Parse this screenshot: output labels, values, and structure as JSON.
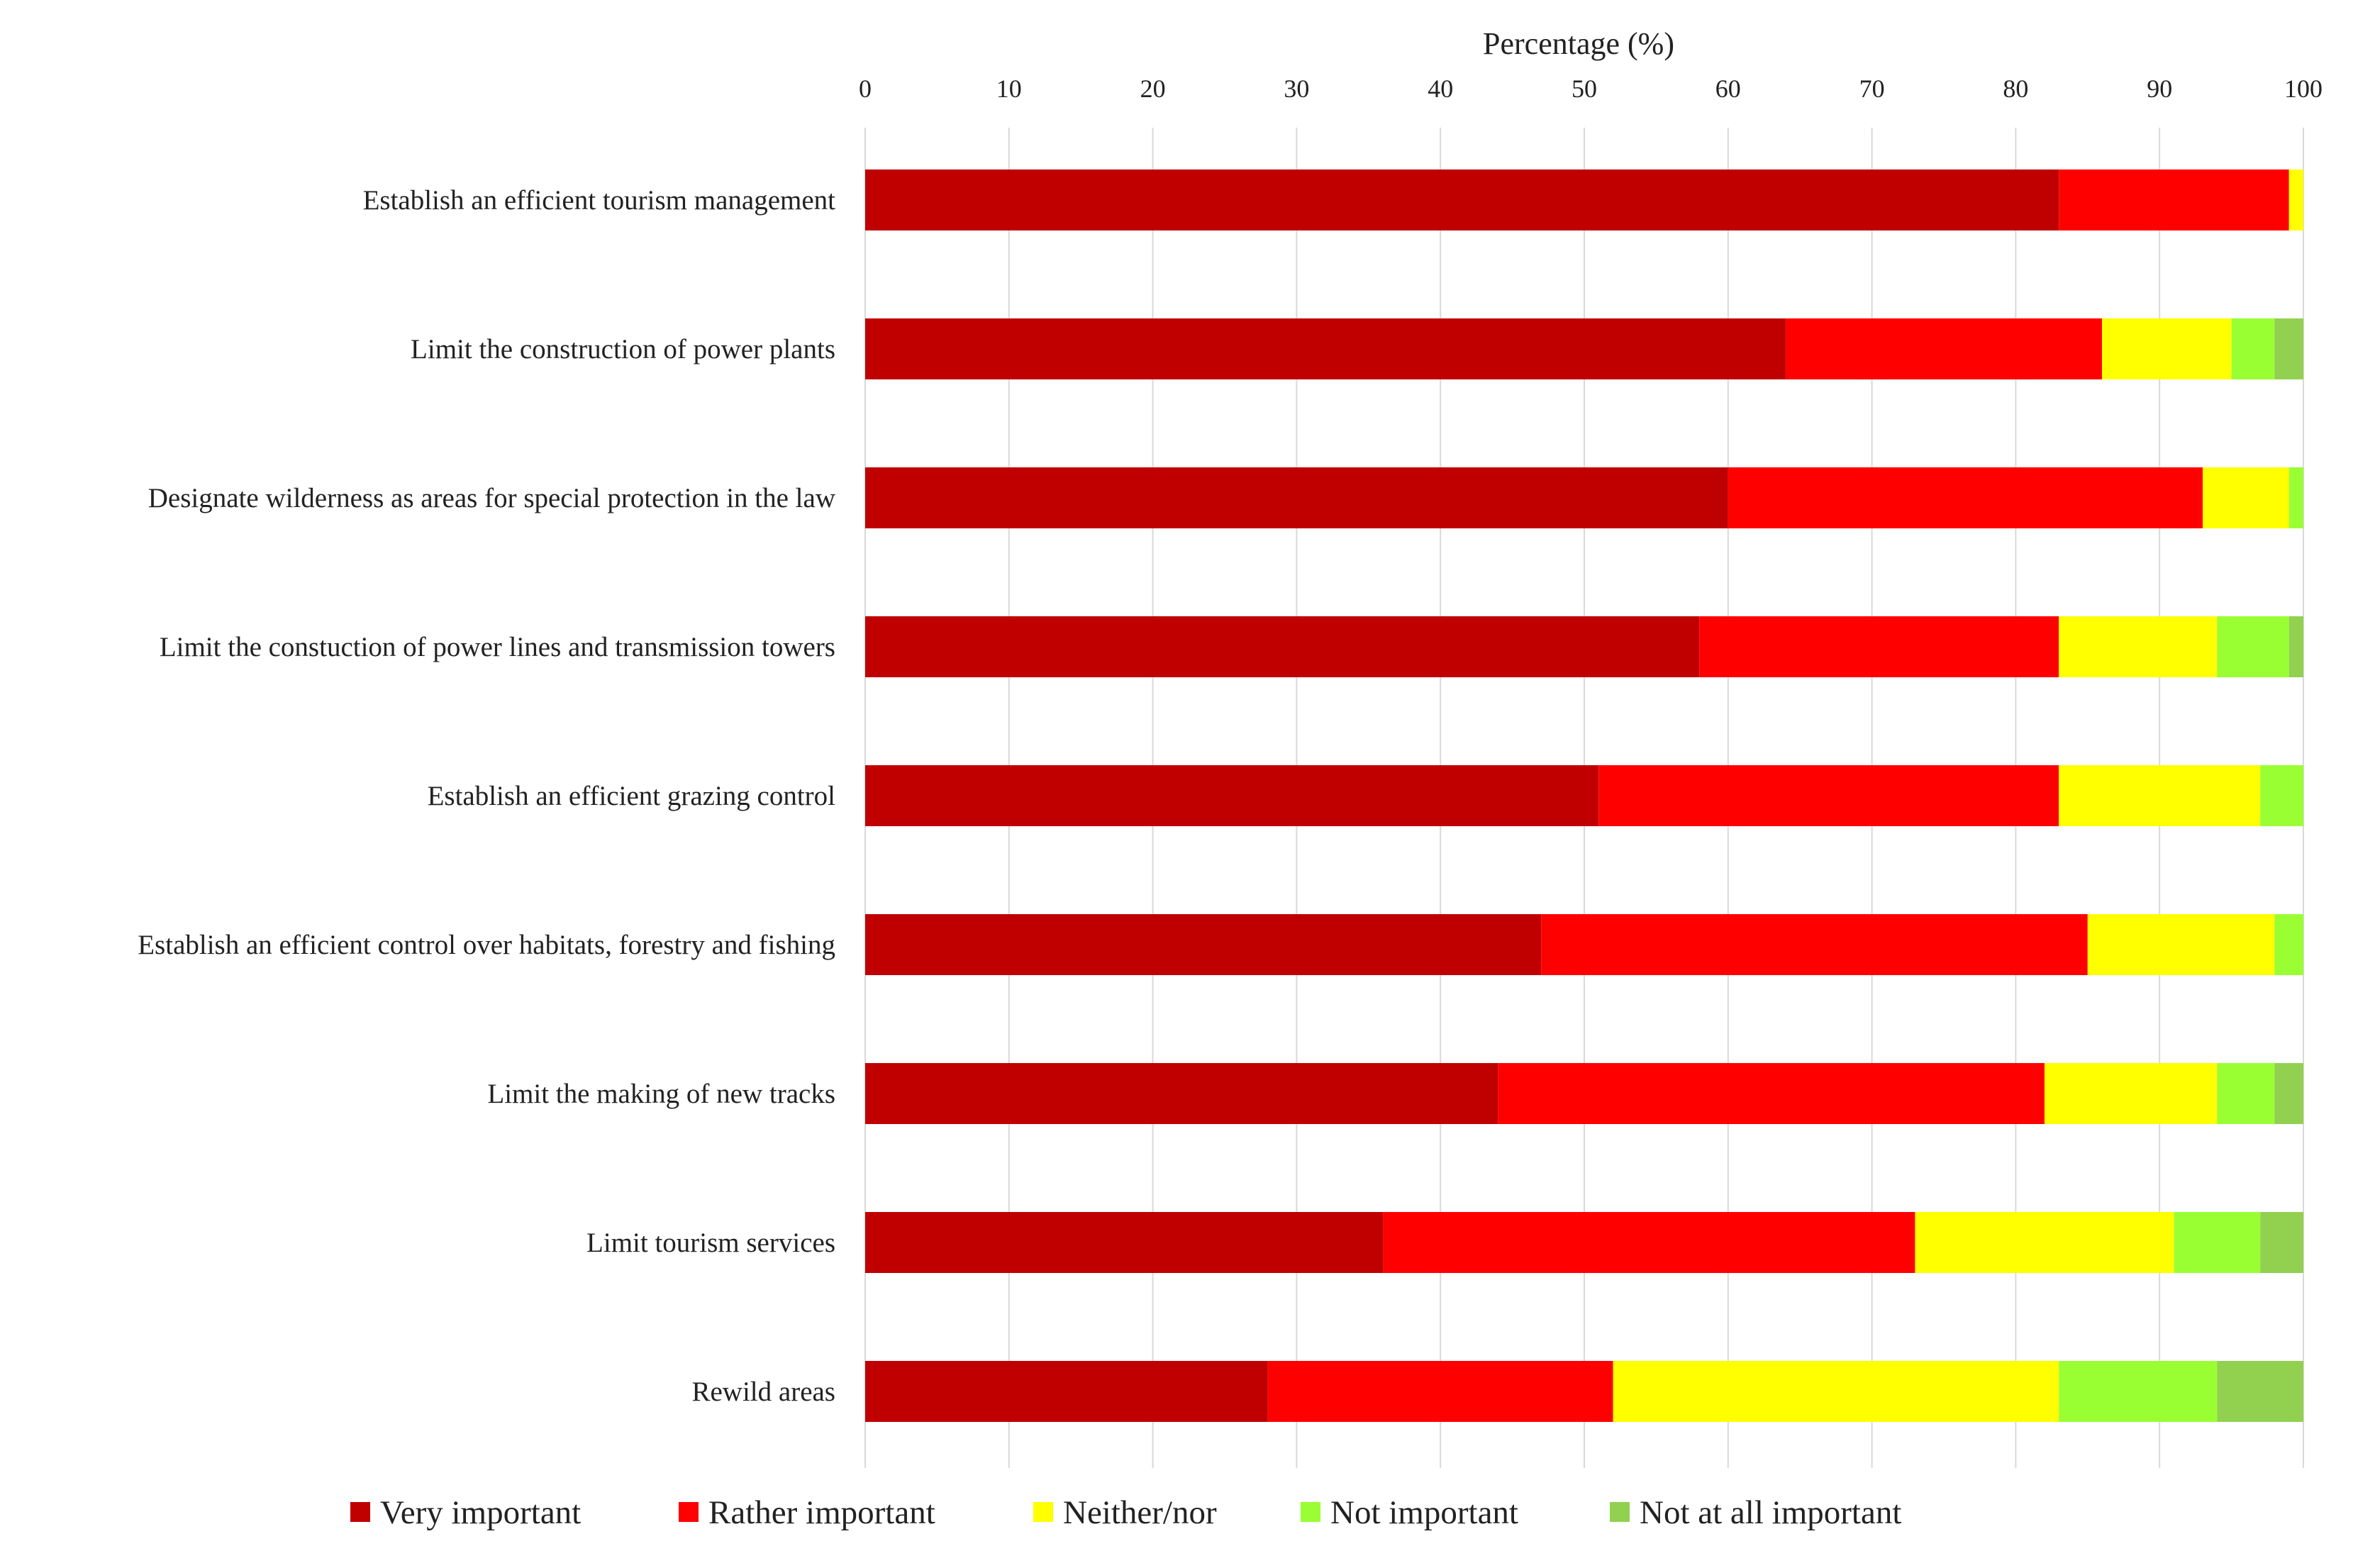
{
  "chart_data": {
    "type": "bar",
    "orientation": "horizontal",
    "stacked": true,
    "title": "",
    "xlabel": "Percentage (%)",
    "ylabel": "",
    "xlim": [
      0,
      100
    ],
    "x_ticks": [
      0,
      10,
      20,
      30,
      40,
      50,
      60,
      70,
      80,
      90,
      100
    ],
    "grid": true,
    "legend_position": "bottom",
    "categories": [
      "Establish an efficient tourism management",
      "Limit the construction of power plants",
      "Designate wilderness as areas for special protection in the  law",
      "Limit the constuction of power lines and transmission towers",
      "Establish an efficient grazing control",
      "Establish an efficient control over habitats, forestry and fishing",
      "Limit the making of new tracks",
      "Limit tourism services",
      "Rewild areas"
    ],
    "series": [
      {
        "name": "Very important",
        "color": "#c00000",
        "values": [
          83,
          64,
          60,
          58,
          51,
          47,
          44,
          36,
          28
        ]
      },
      {
        "name": "Rather important",
        "color": "#ff0000",
        "values": [
          16,
          22,
          33,
          25,
          32,
          38,
          38,
          37,
          24
        ]
      },
      {
        "name": "Neither/nor",
        "color": "#ffff00",
        "values": [
          1,
          9,
          6,
          11,
          14,
          13,
          12,
          18,
          31
        ]
      },
      {
        "name": "Not important",
        "color": "#99ff33",
        "values": [
          0,
          3,
          1,
          5,
          3,
          2,
          4,
          6,
          11
        ]
      },
      {
        "name": "Not at all important",
        "color": "#92d050",
        "values": [
          0,
          2,
          0,
          1,
          0,
          0,
          2,
          3,
          6
        ]
      }
    ]
  }
}
